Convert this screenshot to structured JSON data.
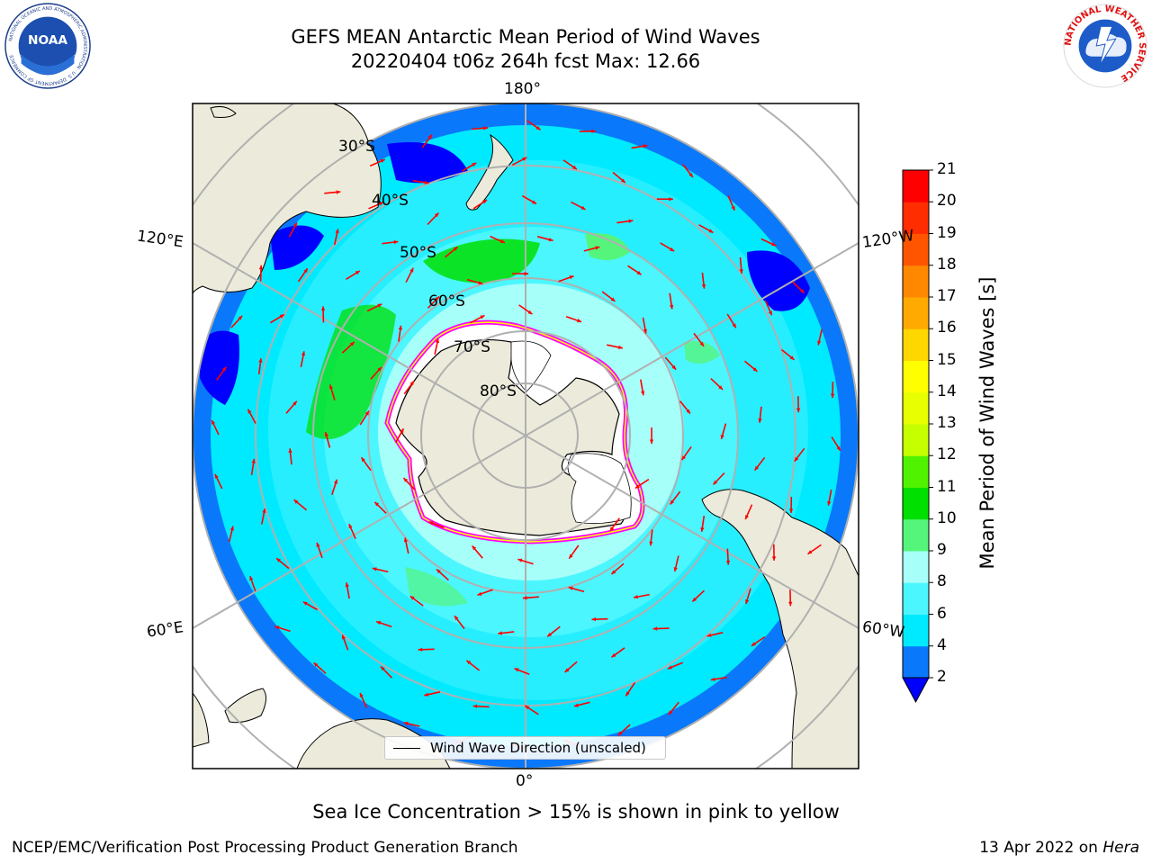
{
  "title": {
    "line1": "GEFS MEAN Antarctic Mean Period of Wind Waves",
    "line2": "20220404 t06z 264h fcst   Max: 12.66"
  },
  "map": {
    "projection": "south-polar-stereographic",
    "longitude_labels": [
      "180°",
      "120°E",
      "120°W",
      "60°E",
      "60°W",
      "0°"
    ],
    "latitude_labels": [
      "30°S",
      "40°S",
      "50°S",
      "60°S",
      "70°S",
      "80°S"
    ],
    "land_color": "#ecebdb",
    "ice_color": "#ffffff",
    "ice_edge_colors": [
      "#ff00ff",
      "#ffff00",
      "#ff9900"
    ],
    "arrow_color": "#ff0000",
    "grid_color": "#b0b0b0"
  },
  "colorbar": {
    "label": "Mean Period of Wind Waves [s]",
    "ticks": [
      "2",
      "4",
      "6",
      "8",
      "9",
      "10",
      "11",
      "12",
      "13",
      "14",
      "15",
      "16",
      "17",
      "18",
      "19",
      "20",
      "21"
    ],
    "colors": [
      "#0a78fa",
      "#00eaff",
      "#4bf6ff",
      "#a6fff9",
      "#55f57c",
      "#00e000",
      "#50f200",
      "#c6ff00",
      "#e7ff00",
      "#ffff00",
      "#ffd700",
      "#ffaa00",
      "#ff8800",
      "#ff5500",
      "#ff2d00",
      "#ff0000"
    ],
    "under_color": "#0000ff"
  },
  "legend": {
    "label": "Wind Wave Direction (unscaled)"
  },
  "note": "Sea Ice Concentration > 15% is shown in pink to yellow",
  "footer": {
    "left": "NCEP/EMC/Verification Post Processing Product Generation Branch",
    "date": "13 Apr 2022 on ",
    "machine": "Hera"
  },
  "logos": {
    "noaa": "NOAA",
    "noaa_ring": "NATIONAL OCEANIC AND ATMOSPHERIC ADMINISTRATION · U.S. DEPARTMENT OF COMMERCE",
    "nws_ring": "NATIONAL WEATHER SERVICE"
  }
}
